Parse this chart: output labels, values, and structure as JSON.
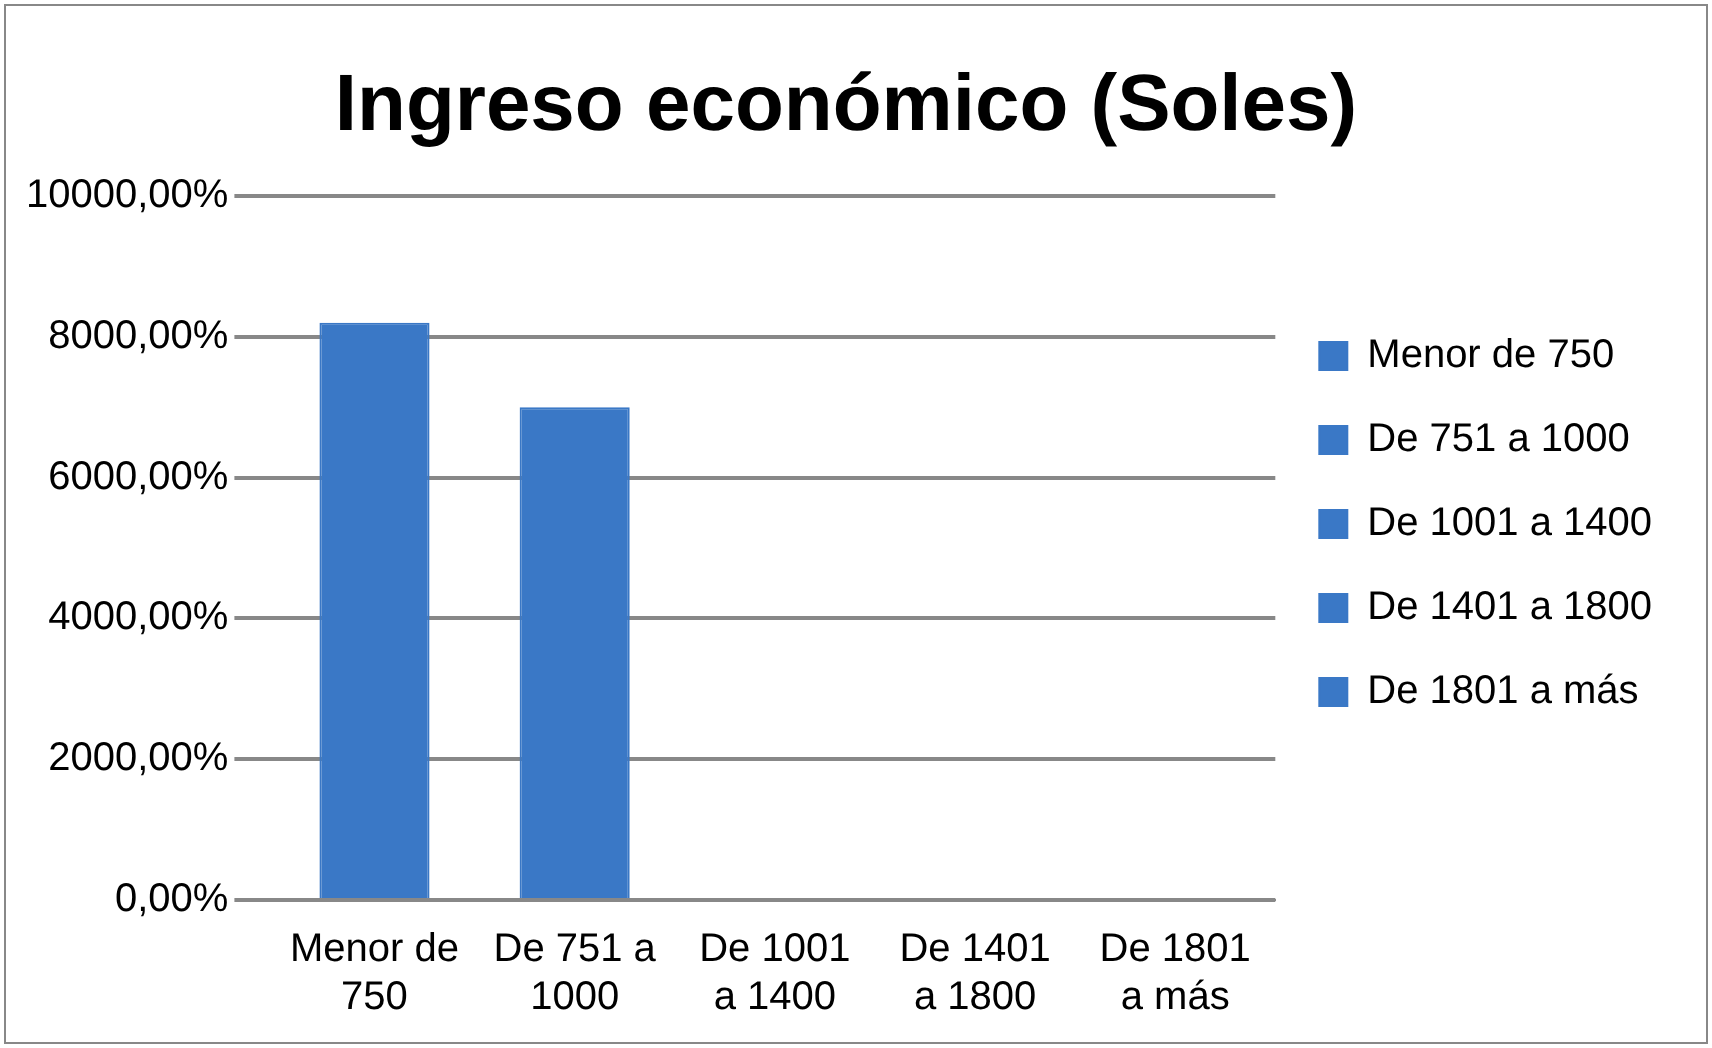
{
  "chart_data": {
    "type": "bar",
    "title": "Ingreso económico (Soles)",
    "categories": [
      "Menor de 750",
      "De 751 a 1000",
      "De 1001 a 1400",
      "De 1401 a 1800",
      "De 1801 a más"
    ],
    "series": [
      {
        "name": "Menor de 750",
        "color": "#3a78c6",
        "values": [
          8200,
          null,
          null,
          null,
          null
        ]
      },
      {
        "name": "De 751 a 1000",
        "color": "#3a78c6",
        "values": [
          null,
          7000,
          null,
          null,
          null
        ]
      },
      {
        "name": "De 1001 a 1400",
        "color": "#3a78c6",
        "values": [
          null,
          null,
          0,
          null,
          null
        ]
      },
      {
        "name": "De 1401 a 1800",
        "color": "#3a78c6",
        "values": [
          null,
          null,
          null,
          0,
          null
        ]
      },
      {
        "name": "De 1801 a más",
        "color": "#3a78c6",
        "values": [
          null,
          null,
          null,
          null,
          0
        ]
      }
    ],
    "ylim": [
      0,
      10000
    ],
    "yticks": [
      {
        "value": 0,
        "label": "0,00%"
      },
      {
        "value": 2000,
        "label": "2000,00%"
      },
      {
        "value": 4000,
        "label": "4000,00%"
      },
      {
        "value": 6000,
        "label": "6000,00%"
      },
      {
        "value": 8000,
        "label": "8000,00%"
      },
      {
        "value": 10000,
        "label": "10000,00%"
      }
    ],
    "grid": "y",
    "legend": "right"
  }
}
